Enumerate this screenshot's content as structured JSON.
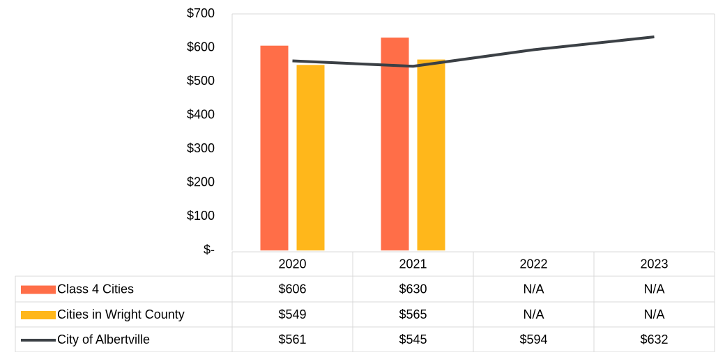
{
  "chart_data": {
    "type": "bar",
    "categories": [
      "2020",
      "2021",
      "2022",
      "2023"
    ],
    "series": [
      {
        "name": "Class 4 Cities",
        "type": "bar",
        "color": "#ff6e48",
        "values": [
          606,
          630,
          null,
          null
        ],
        "value_labels": [
          "$606",
          "$630",
          "N/A",
          "N/A"
        ]
      },
      {
        "name": "Cities in Wright County",
        "type": "bar",
        "color": "#ffb71b",
        "values": [
          549,
          565,
          null,
          null
        ],
        "value_labels": [
          "$549",
          "$565",
          "N/A",
          "N/A"
        ]
      },
      {
        "name": "City of Albertville",
        "type": "line",
        "color": "#3b4045",
        "values": [
          561,
          545,
          594,
          632
        ],
        "value_labels": [
          "$561",
          "$545",
          "$594",
          "$632"
        ]
      }
    ],
    "ylim": [
      0,
      700
    ],
    "yticks": [
      {
        "value": 0,
        "label": "$-"
      },
      {
        "value": 100,
        "label": "$100"
      },
      {
        "value": 200,
        "label": "$200"
      },
      {
        "value": 300,
        "label": "$300"
      },
      {
        "value": 400,
        "label": "$400"
      },
      {
        "value": 500,
        "label": "$500"
      },
      {
        "value": 600,
        "label": "$600"
      },
      {
        "value": 700,
        "label": "$700"
      }
    ],
    "grid": false
  }
}
